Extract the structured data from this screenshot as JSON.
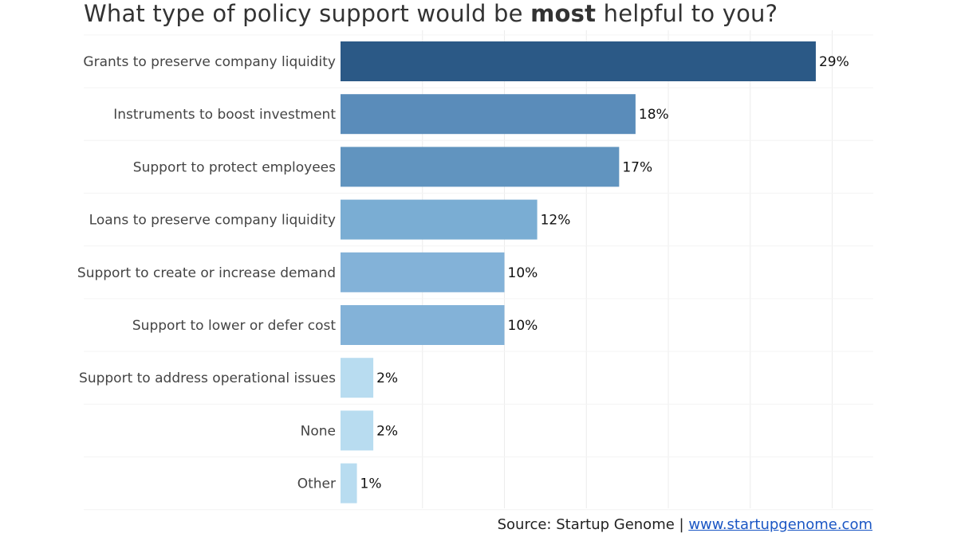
{
  "title": {
    "prefix": "What type of policy support would be ",
    "bold": "most",
    "suffix": " helpful to you?"
  },
  "chart_data": {
    "type": "bar",
    "orientation": "horizontal",
    "categories": [
      "Grants to preserve company liquidity",
      "Instruments to boost investment",
      "Support to protect employees",
      "Loans to preserve company liquidity",
      "Support to create or increase demand",
      "Support to lower or defer cost",
      "Support to address operational issues",
      "None",
      "Other"
    ],
    "values": [
      29,
      18,
      17,
      12,
      10,
      10,
      2,
      2,
      1
    ],
    "value_labels": [
      "29%",
      "18%",
      "17%",
      "12%",
      "10%",
      "10%",
      "2%",
      "2%",
      "1%"
    ],
    "colors": [
      "#2b5986",
      "#5a8cba",
      "#6194bf",
      "#7aadd3",
      "#83b2d8",
      "#83b2d8",
      "#b8dcf0",
      "#b8dcf0",
      "#b8dcf0"
    ],
    "xlim": [
      0,
      32
    ],
    "grid": true
  },
  "footer": {
    "source_label": "Source: Startup Genome | ",
    "link_text": "www.startupgenome.com"
  }
}
